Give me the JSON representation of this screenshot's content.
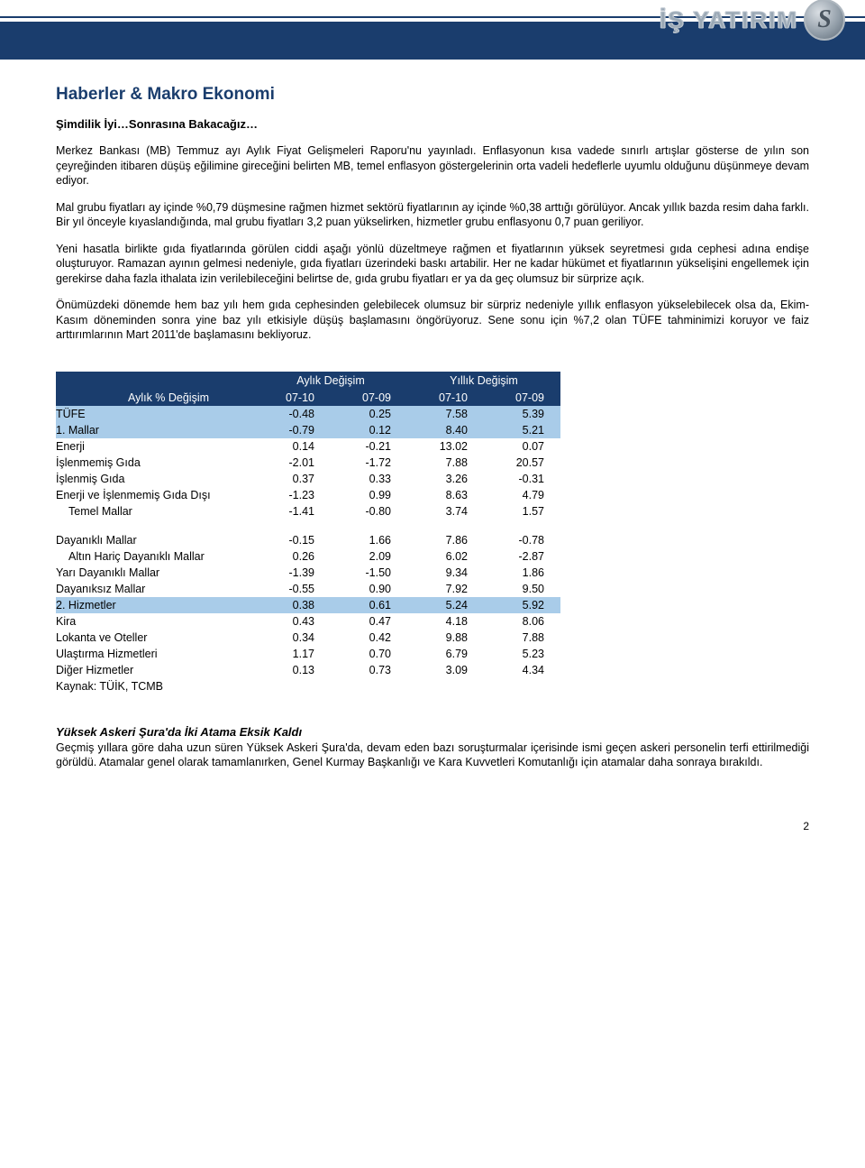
{
  "logo": {
    "text": "İŞ YATIRIM",
    "mark": "S"
  },
  "section_title": "Haberler & Makro Ekonomi",
  "subtitle": "Şimdilik İyi…Sonrasına Bakacağız…",
  "paragraphs": [
    "Merkez Bankası (MB) Temmuz ayı Aylık Fiyat Gelişmeleri Raporu'nu yayınladı. Enflasyonun kısa vadede sınırlı artışlar gösterse de yılın son çeyreğinden itibaren düşüş eğilimine gireceğini belirten MB, temel enflasyon göstergelerinin orta vadeli hedeflerle uyumlu olduğunu düşünmeye devam ediyor.",
    "Mal grubu fiyatları ay içinde %0,79 düşmesine rağmen hizmet sektörü fiyatlarının ay içinde %0,38 arttığı görülüyor. Ancak yıllık bazda resim daha farklı. Bir yıl önceyle kıyaslandığında, mal grubu fiyatları 3,2 puan yükselirken, hizmetler grubu enflasyonu 0,7 puan geriliyor.",
    "Yeni hasatla birlikte gıda fiyatlarında görülen ciddi aşağı yönlü düzeltmeye rağmen et fiyatlarının yüksek seyretmesi gıda cephesi adına endişe oluşturuyor. Ramazan ayının gelmesi nedeniyle, gıda fiyatları üzerindeki baskı artabilir. Her ne kadar hükümet et fiyatlarının yükselişini engellemek için gerekirse daha fazla ithalata izin verilebileceğini belirtse de, gıda grubu fiyatları er ya da geç olumsuz bir sürprize açık.",
    "Önümüzdeki dönemde hem baz yılı hem gıda cephesinden gelebilecek olumsuz bir sürpriz nedeniyle yıllık enflasyon yükselebilecek olsa da, Ekim-Kasım döneminden sonra yine baz yılı etkisiyle düşüş başlamasını öngörüyoruz. Sene sonu için %7,2 olan TÜFE tahminimizi koruyor ve faiz arttırımlarının Mart 2011'de başlamasını bekliyoruz."
  ],
  "table": {
    "group_headers": [
      "Aylık Değişim",
      "Yıllık Değişim"
    ],
    "row_label_header": "Aylık % Değişim",
    "col_headers": [
      "07-10",
      "07-09",
      "07-10",
      "07-09"
    ],
    "hl_row_color": "#a9cce9",
    "header_bg": "#1a3d6d",
    "header_fg": "#ffffff",
    "rows_block1": [
      {
        "label": "TÜFE",
        "indent": 0,
        "vals": [
          "-0.48",
          "0.25",
          "7.58",
          "5.39"
        ],
        "hl": true
      },
      {
        "label": "1. Mallar",
        "indent": 0,
        "vals": [
          "-0.79",
          "0.12",
          "8.40",
          "5.21"
        ],
        "hl": true
      },
      {
        "label": "Enerji",
        "indent": 0,
        "vals": [
          "0.14",
          "-0.21",
          "13.02",
          "0.07"
        ],
        "hl": false
      },
      {
        "label": "İşlenmemiş Gıda",
        "indent": 0,
        "vals": [
          "-2.01",
          "-1.72",
          "7.88",
          "20.57"
        ],
        "hl": false
      },
      {
        "label": "İşlenmiş Gıda",
        "indent": 0,
        "vals": [
          "0.37",
          "0.33",
          "3.26",
          "-0.31"
        ],
        "hl": false
      },
      {
        "label": "Enerji ve İşlenmemiş Gıda Dışı",
        "indent": 0,
        "vals": [
          "-1.23",
          "0.99",
          "8.63",
          "4.79"
        ],
        "hl": false
      },
      {
        "label": "Temel Mallar",
        "indent": 1,
        "vals": [
          "-1.41",
          "-0.80",
          "3.74",
          "1.57"
        ],
        "hl": false
      }
    ],
    "rows_block2": [
      {
        "label": "Dayanıklı Mallar",
        "indent": 0,
        "vals": [
          "-0.15",
          "1.66",
          "7.86",
          "-0.78"
        ],
        "hl": false
      },
      {
        "label": "Altın Hariç Dayanıklı Mallar",
        "indent": 1,
        "vals": [
          "0.26",
          "2.09",
          "6.02",
          "-2.87"
        ],
        "hl": false
      },
      {
        "label": "Yarı Dayanıklı Mallar",
        "indent": 0,
        "vals": [
          "-1.39",
          "-1.50",
          "9.34",
          "1.86"
        ],
        "hl": false
      },
      {
        "label": "Dayanıksız Mallar",
        "indent": 0,
        "vals": [
          "-0.55",
          "0.90",
          "7.92",
          "9.50"
        ],
        "hl": false
      },
      {
        "label": "2. Hizmetler",
        "indent": 0,
        "vals": [
          "0.38",
          "0.61",
          "5.24",
          "5.92"
        ],
        "hl": true
      },
      {
        "label": "Kira",
        "indent": 0,
        "vals": [
          "0.43",
          "0.47",
          "4.18",
          "8.06"
        ],
        "hl": false
      },
      {
        "label": "Lokanta ve Oteller",
        "indent": 0,
        "vals": [
          "0.34",
          "0.42",
          "9.88",
          "7.88"
        ],
        "hl": false
      },
      {
        "label": "Ulaştırma Hizmetleri",
        "indent": 0,
        "vals": [
          "1.17",
          "0.70",
          "6.79",
          "5.23"
        ],
        "hl": false
      },
      {
        "label": "Diğer Hizmetler",
        "indent": 0,
        "vals": [
          "0.13",
          "0.73",
          "3.09",
          "4.34"
        ],
        "hl": false
      }
    ],
    "source": "Kaynak: TÜİK, TCMB"
  },
  "article2": {
    "title": "Yüksek Askeri Şura'da İki Atama Eksik Kaldı",
    "body": "Geçmiş yıllara göre daha uzun süren Yüksek Askeri Şura'da, devam eden bazı soruşturmalar içerisinde ismi geçen askeri personelin terfi ettirilmediği görüldü. Atamalar genel olarak tamamlanırken, Genel Kurmay Başkanlığı ve Kara Kuvvetleri Komutanlığı için atamalar daha sonraya bırakıldı."
  },
  "page_number": "2"
}
